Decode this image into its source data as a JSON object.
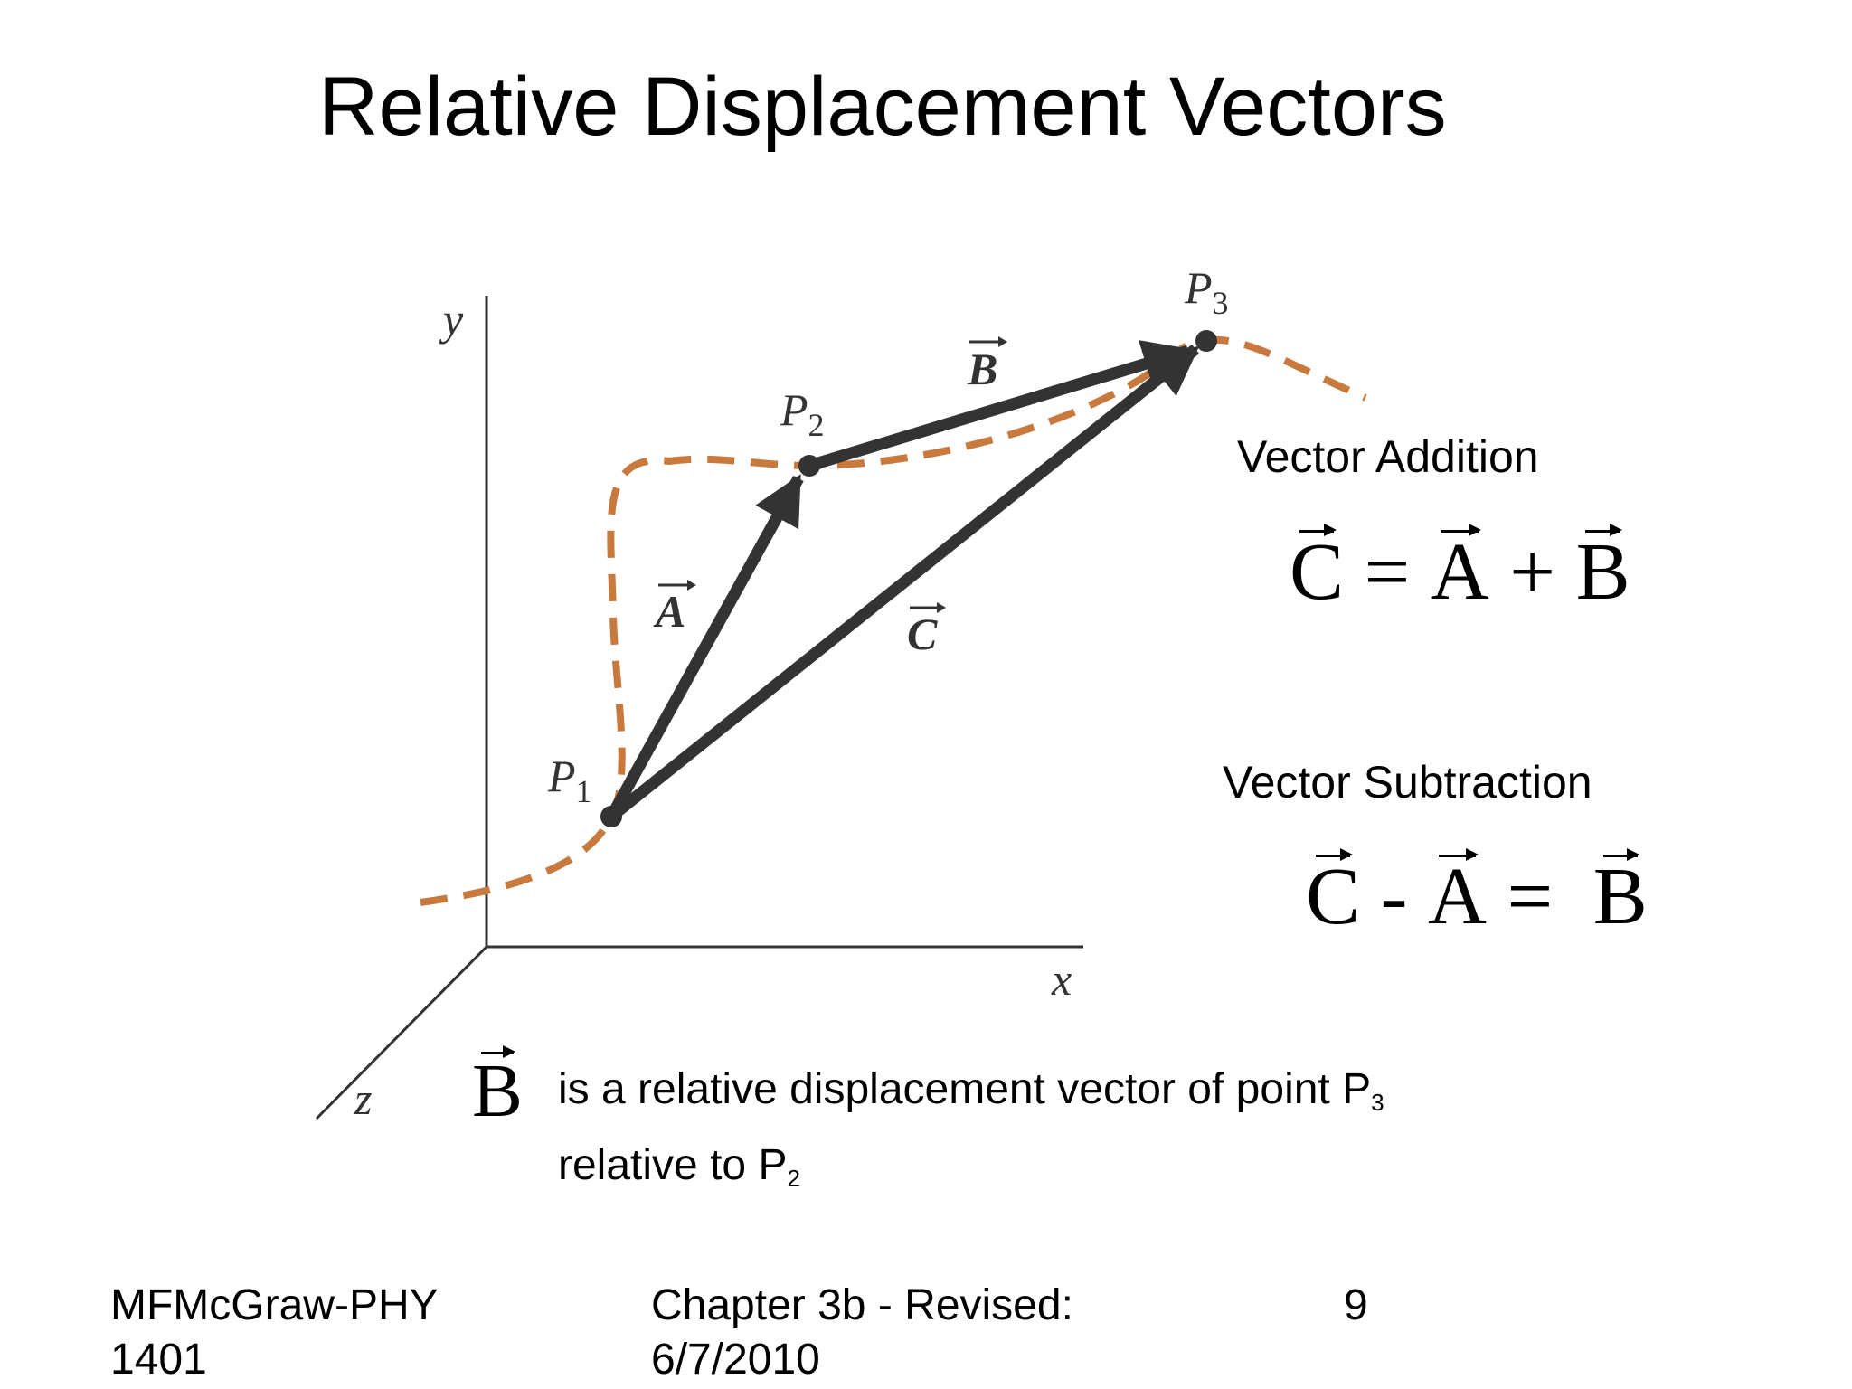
{
  "title": "Relative Displacement Vectors",
  "diagram": {
    "axes": {
      "x": "x",
      "y": "y",
      "z": "z"
    },
    "points": [
      {
        "label": "P",
        "subscript": "1"
      },
      {
        "label": "P",
        "subscript": "2"
      },
      {
        "label": "P",
        "subscript": "3"
      }
    ],
    "vectors": {
      "a": "A",
      "b": "B",
      "c": "C"
    },
    "colors": {
      "path": "#c87a3e",
      "vector": "#333333",
      "axis": "#333333"
    }
  },
  "vector_addition": {
    "label": "Vector Addition",
    "lhs": "C",
    "eq": "=",
    "t1": "A",
    "op": "+",
    "t2": "B"
  },
  "vector_subtraction": {
    "label": "Vector Subtraction",
    "t1": "C",
    "op": "-",
    "t2": "A",
    "eq": "=",
    "rhs": "B"
  },
  "caption": {
    "vector": "B",
    "line1": "is a relative displacement vector of point P",
    "line1_sub": "3",
    "line2": "relative to P",
    "line2_sub": "2"
  },
  "footer": {
    "left": "MFMcGraw-PHY 1401",
    "center": "Chapter 3b - Revised: 6/7/2010",
    "page": "9"
  }
}
